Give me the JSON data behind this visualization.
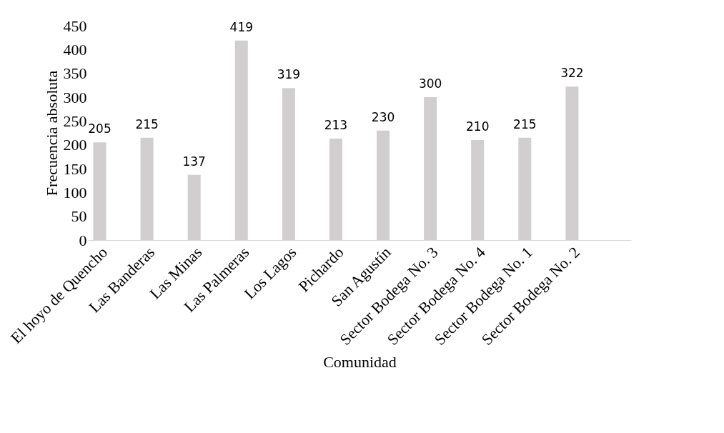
{
  "chart_data": {
    "type": "bar",
    "xlabel": "Comunidad",
    "ylabel": "Frecuencia absoluta",
    "categories": [
      "El hoyo de Quencho",
      "Las Banderas",
      "Las Minas",
      "Las Palmeras",
      "Los Lagos",
      "Pichardo",
      "San Agustín",
      "Sector Bodega No. 3",
      "Sector Bodega No. 4",
      "Sector Bodega No. 1",
      "Sector Bodega No. 2",
      null
    ],
    "values": [
      205,
      215,
      137,
      419,
      319,
      213,
      230,
      300,
      210,
      215,
      322,
      null
    ],
    "color": "#d0cece",
    "ylim": [
      0,
      450
    ],
    "yticks": [
      0,
      50,
      100,
      150,
      200,
      250,
      300,
      350,
      400,
      450
    ],
    "data_labels": true,
    "grid": false
  }
}
